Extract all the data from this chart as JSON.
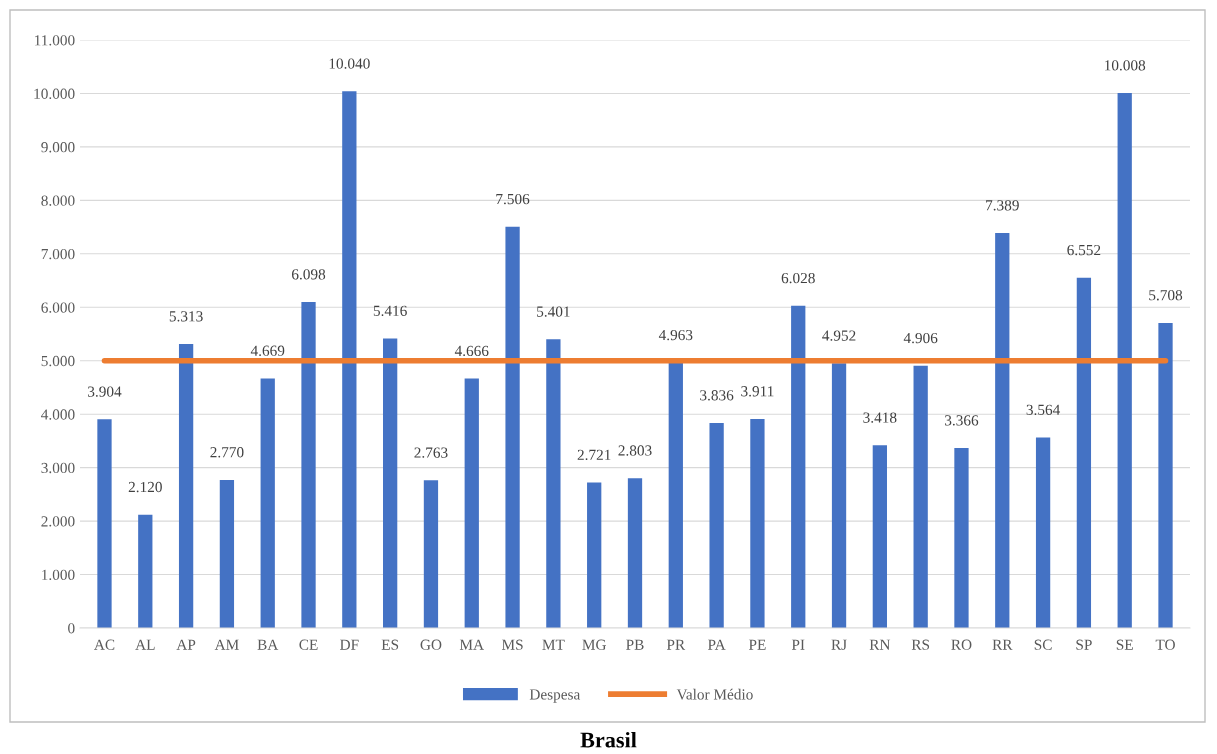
{
  "chart_data": {
    "type": "bar",
    "title": "Brasil",
    "categories": [
      "AC",
      "AL",
      "AP",
      "AM",
      "BA",
      "CE",
      "DF",
      "ES",
      "GO",
      "MA",
      "MS",
      "MT",
      "MG",
      "PB",
      "PR",
      "PA",
      "PE",
      "PI",
      "RJ",
      "RN",
      "RS",
      "RO",
      "RR",
      "SC",
      "SP",
      "SE",
      "TO"
    ],
    "series": [
      {
        "name": "Despesa",
        "color": "#4472c4",
        "values": [
          3904,
          2120,
          5313,
          2770,
          4669,
          6098,
          10040,
          5416,
          2763,
          4666,
          7506,
          5401,
          2721,
          2803,
          4963,
          3836,
          3911,
          6028,
          4952,
          3418,
          4906,
          3366,
          7389,
          3564,
          6552,
          10008,
          5708
        ],
        "value_labels": [
          "3.904",
          "2.120",
          "5.313",
          "2.770",
          "4.669",
          "6.098",
          "10.040",
          "5.416",
          "2.763",
          "4.666",
          "7.506",
          "5.401",
          "2.721",
          "2.803",
          "4.963",
          "3.836",
          "3.911",
          "6.028",
          "4.952",
          "3.418",
          "4.906",
          "3.366",
          "7.389",
          "3.564",
          "6.552",
          "10.008",
          "5.708"
        ]
      },
      {
        "name": "Valor Médio",
        "type": "line",
        "color": "#ed7d31",
        "values": [
          5000,
          5000,
          5000,
          5000,
          5000,
          5000,
          5000,
          5000,
          5000,
          5000,
          5000,
          5000,
          5000,
          5000,
          5000,
          5000,
          5000,
          5000,
          5000,
          5000,
          5000,
          5000,
          5000,
          5000,
          5000,
          5000,
          5000
        ]
      }
    ],
    "ylim": [
      0,
      11000
    ],
    "yticks": [
      0,
      {
        "value": 1000,
        "label": "1.000"
      },
      {
        "value": 2000,
        "label": "2.000"
      },
      {
        "value": 3000,
        "label": "3.000"
      },
      {
        "value": 4000,
        "label": "4.000"
      },
      {
        "value": 5000,
        "label": "5.000"
      },
      {
        "value": 6000,
        "label": "6.000"
      },
      {
        "value": 7000,
        "label": "7.000"
      },
      {
        "value": 8000,
        "label": "8.000"
      },
      {
        "value": 9000,
        "label": "9.000"
      },
      {
        "value": 10000,
        "label": "10.000"
      },
      {
        "value": 11000,
        "label": "11.000"
      }
    ],
    "grid": "y",
    "legend": "bottom",
    "marker": "none",
    "line_style": "solid"
  }
}
